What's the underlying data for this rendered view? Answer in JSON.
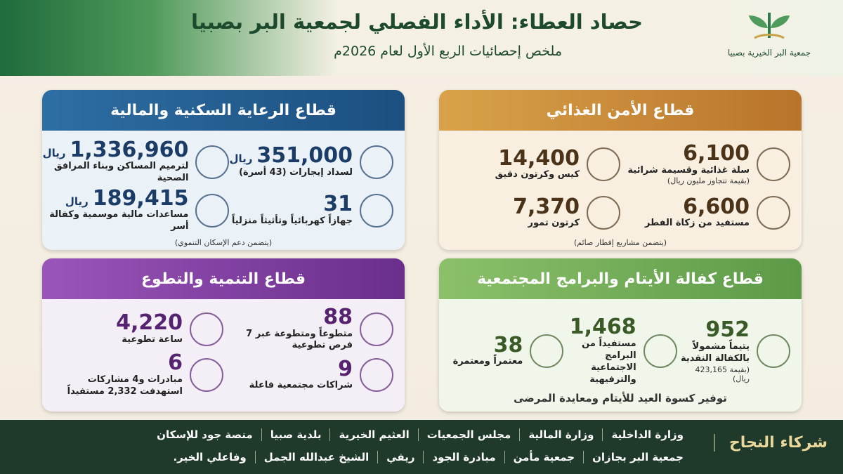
{
  "header": {
    "title": "حصاد العطاء: الأداء الفصلي لجمعية البر بصبيا",
    "subtitle": "ملخص إحصائيات الربع الأول لعام 2026م",
    "logo_text": "جمعية البر الخيرية بصبيا"
  },
  "sections": [
    {
      "title": "قطاع الأمن الغذائي",
      "items": [
        {
          "value": "6,100",
          "label": "سلة غذائية وقسيمة شرائية",
          "note": "(بقيمة تتجاوز مليون ريال)"
        },
        {
          "value": "14,400",
          "label": "كيس وكرتون دقيق"
        },
        {
          "value": "6,600",
          "label": "مستفيد من زكاة الفطر"
        },
        {
          "value": "7,370",
          "label": "كرتون تمور"
        }
      ],
      "footnote": "(يتضمن مشاريع إفطار صائم)"
    },
    {
      "title": "قطاع الرعاية السكنية والمالية",
      "items": [
        {
          "value": "351,000",
          "unit": "ريال",
          "label": "لسداد إيجارات (43 أسرة)"
        },
        {
          "value": "1,336,960",
          "unit": "ريال",
          "label": "لترميم المساكن وبناء المرافق الصحية"
        },
        {
          "value": "31",
          "label": "جهازاً كهربائياً وتأثيثاً منزلياً"
        },
        {
          "value": "189,415",
          "unit": "ريال",
          "label": "مساعدات مالية موسمية وكفالة أسر"
        }
      ],
      "footnote": "(يتضمن دعم الإسكان التنموي)"
    },
    {
      "title": "قطاع كفالة الأيتام والبرامج المجتمعية",
      "items": [
        {
          "value": "952",
          "label": "يتيماً مشمولاً بالكفالة النقدية",
          "note": "(بقيمة 423,165 ريال)"
        },
        {
          "value": "1,468",
          "label": "مستفيداً من البرامج الاجتماعية والترفيهية"
        },
        {
          "value": "38",
          "label": "معتمراً ومعتمرة"
        }
      ],
      "footnote": "توفير كسوة العيد للأيتام ومعايدة المرضى"
    },
    {
      "title": "قطاع التنمية والتطوع",
      "items": [
        {
          "value": "88",
          "label": "متطوعاً ومتطوعة عبر 7 فرص تطوعية"
        },
        {
          "value": "4,220",
          "label": "ساعة تطوعية"
        },
        {
          "value": "9",
          "label": "شراكات مجتمعية فاعلة"
        },
        {
          "value": "6",
          "label": "مبادرات و4 مشاركات استهدفت 2,332 مستفيداً"
        }
      ]
    }
  ],
  "footer": {
    "title": "شركاء النجاح",
    "partners": [
      [
        "وزارة الداخلية",
        "وزارة المالية",
        "مجلس الجمعيات",
        "العثيم الخيرية",
        "بلدية صبيا",
        "منصة جود للإسكان"
      ],
      [
        "جمعية البر بجازان",
        "جمعية مأمن",
        "مبادرة الجود",
        "ريفي",
        "الشيخ عبدالله الجمل",
        "وفاعلي الخير."
      ]
    ]
  }
}
